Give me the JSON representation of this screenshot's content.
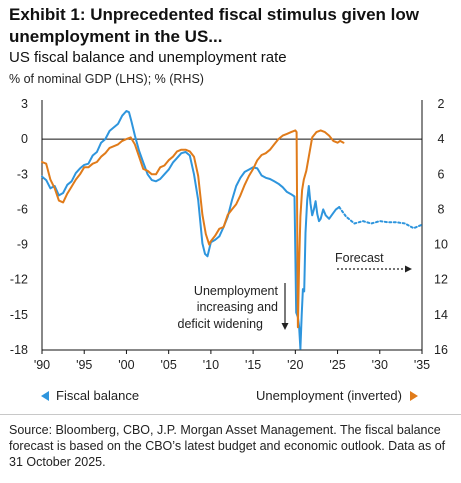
{
  "title": "Exhibit 1: Unprecedented fiscal stimulus given low unemployment in the US...",
  "subtitle": "US fiscal balance and unemployment rate",
  "units_note": "% of nominal GDP (LHS); % (RHS)",
  "source": "Source: Bloomberg, CBO, J.P. Morgan Asset Management. The fiscal balance forecast is based on the CBO’s latest budget and economic outlook. Data as of 31 October 2025.",
  "colors": {
    "fiscal": "#2e95dd",
    "unemployment": "#e07b1a",
    "axis": "#111111"
  },
  "chart_data": {
    "type": "line",
    "x_ticks": [
      "'90",
      "'95",
      "'00",
      "'05",
      "'10",
      "'15",
      "'20",
      "'25",
      "'30",
      "'35"
    ],
    "x_tick_values": [
      1990,
      1995,
      2000,
      2005,
      2010,
      2015,
      2020,
      2025,
      2030,
      2035
    ],
    "xlim": [
      1990,
      2035
    ],
    "y_left": {
      "ticks": [
        "3",
        "0",
        "-3",
        "-6",
        "-9",
        "-12",
        "-15",
        "-18"
      ],
      "tick_values": [
        3,
        0,
        -3,
        -6,
        -9,
        -12,
        -15,
        -18
      ],
      "lim": [
        -18,
        3
      ]
    },
    "y_right": {
      "ticks": [
        "2",
        "4",
        "6",
        "8",
        "10",
        "12",
        "14",
        "16"
      ],
      "tick_values": [
        2,
        4,
        6,
        8,
        10,
        12,
        14,
        16
      ],
      "lim": [
        2,
        16
      ],
      "inverted": true
    },
    "annotations": {
      "forecast": "Forecast",
      "unemployment_note": [
        "Unemployment",
        "increasing and",
        "deficit widening"
      ]
    },
    "legend": {
      "fiscal": "Fiscal balance",
      "unemployment": "Unemployment (inverted)"
    },
    "series": [
      {
        "name": "Fiscal balance",
        "axis": "left",
        "x": [
          1990,
          1990.5,
          1991,
          1991.5,
          1992,
          1992.5,
          1993,
          1993.5,
          1994,
          1994.5,
          1995,
          1995.5,
          1996,
          1996.5,
          1997,
          1997.5,
          1998,
          1998.5,
          1999,
          1999.5,
          2000,
          2000.3,
          2000.6,
          2001,
          2001.5,
          2002,
          2002.5,
          2003,
          2003.5,
          2004,
          2004.5,
          2005,
          2005.5,
          2006,
          2006.5,
          2007,
          2007.5,
          2008,
          2008.5,
          2009,
          2009.3,
          2009.6,
          2010,
          2010.5,
          2011,
          2011.5,
          2012,
          2012.5,
          2013,
          2013.5,
          2014,
          2014.5,
          2015,
          2015.5,
          2016,
          2016.5,
          2017,
          2017.5,
          2018,
          2018.5,
          2019,
          2019.5,
          2019.9,
          2020.1,
          2020.3,
          2020.45,
          2020.6,
          2020.75,
          2020.9,
          2021.05,
          2021.2,
          2021.4,
          2021.6,
          2021.8,
          2022,
          2022.2,
          2022.4,
          2022.6,
          2022.8,
          2023,
          2023.3,
          2023.6,
          2024,
          2024.4,
          2024.8,
          2025.2
        ],
        "y": [
          -3.2,
          -3.5,
          -4.2,
          -4.0,
          -4.8,
          -4.6,
          -3.9,
          -3.6,
          -2.9,
          -2.5,
          -2.2,
          -2.1,
          -1.4,
          -1.1,
          -0.3,
          0.0,
          0.7,
          1.0,
          1.3,
          2.0,
          2.4,
          2.3,
          1.5,
          0.3,
          -1.0,
          -2.0,
          -3.0,
          -3.5,
          -3.6,
          -3.4,
          -3.0,
          -2.6,
          -2.0,
          -1.6,
          -1.2,
          -1.1,
          -1.4,
          -3.0,
          -5.2,
          -8.9,
          -9.8,
          -10.0,
          -8.8,
          -8.6,
          -8.3,
          -7.5,
          -6.6,
          -5.2,
          -4.0,
          -3.3,
          -2.8,
          -2.6,
          -2.4,
          -2.5,
          -3.1,
          -3.3,
          -3.4,
          -3.6,
          -3.8,
          -4.1,
          -4.5,
          -4.7,
          -4.9,
          -14.8,
          -15.2,
          -16.0,
          -17.9,
          -15.0,
          -12.8,
          -13.0,
          -8.0,
          -5.2,
          -4.0,
          -5.5,
          -6.5,
          -6.0,
          -5.3,
          -6.4,
          -7.0,
          -6.8,
          -6.0,
          -6.5,
          -6.8,
          -6.4,
          -6.0,
          -5.8
        ]
      },
      {
        "name": "Fiscal balance (forecast)",
        "axis": "left",
        "x": [
          2025.2,
          2026,
          2027,
          2028,
          2029,
          2030,
          2031,
          2032,
          2033,
          2034,
          2035
        ],
        "y": [
          -5.8,
          -6.6,
          -7.2,
          -7.0,
          -7.2,
          -7.0,
          -7.1,
          -7.1,
          -7.2,
          -7.6,
          -7.3
        ]
      },
      {
        "name": "Unemployment (inverted)",
        "axis": "right",
        "x": [
          1990,
          1990.5,
          1991,
          1991.5,
          1992,
          1992.5,
          1993,
          1993.5,
          1994,
          1994.5,
          1995,
          1995.5,
          1996,
          1996.5,
          1997,
          1997.5,
          1998,
          1998.5,
          1999,
          1999.5,
          2000,
          2000.5,
          2001,
          2001.5,
          2002,
          2002.5,
          2003,
          2003.5,
          2004,
          2004.5,
          2005,
          2005.5,
          2006,
          2006.5,
          2007,
          2007.5,
          2008,
          2008.5,
          2009,
          2009.4,
          2009.8,
          2010,
          2010.5,
          2011,
          2011.5,
          2012,
          2012.5,
          2013,
          2013.5,
          2014,
          2014.5,
          2015,
          2015.5,
          2016,
          2016.5,
          2017,
          2017.5,
          2018,
          2018.5,
          2019,
          2019.5,
          2020,
          2020.15,
          2020.3,
          2020.45,
          2020.6,
          2020.8,
          2021,
          2021.3,
          2021.6,
          2022,
          2022.5,
          2023,
          2023.5,
          2024,
          2024.5,
          2025,
          2025.3,
          2025.7
        ],
        "y": [
          5.3,
          5.4,
          6.3,
          6.8,
          7.5,
          7.6,
          7.1,
          6.7,
          6.3,
          6.0,
          5.6,
          5.6,
          5.4,
          5.3,
          5.0,
          4.8,
          4.5,
          4.4,
          4.3,
          4.1,
          4.0,
          3.9,
          4.3,
          5.0,
          5.7,
          5.8,
          6.0,
          6.0,
          5.6,
          5.5,
          5.2,
          5.0,
          4.7,
          4.6,
          4.6,
          4.7,
          5.0,
          6.1,
          8.3,
          9.4,
          10.0,
          9.8,
          9.5,
          9.1,
          9.0,
          8.3,
          8.0,
          7.7,
          7.2,
          6.6,
          6.1,
          5.7,
          5.2,
          4.9,
          4.8,
          4.6,
          4.3,
          4.0,
          3.8,
          3.7,
          3.6,
          3.5,
          3.6,
          14.7,
          11.1,
          8.4,
          6.9,
          6.3,
          5.8,
          5.0,
          3.9,
          3.6,
          3.5,
          3.6,
          3.8,
          4.1,
          4.2,
          4.1,
          4.2
        ]
      }
    ]
  }
}
